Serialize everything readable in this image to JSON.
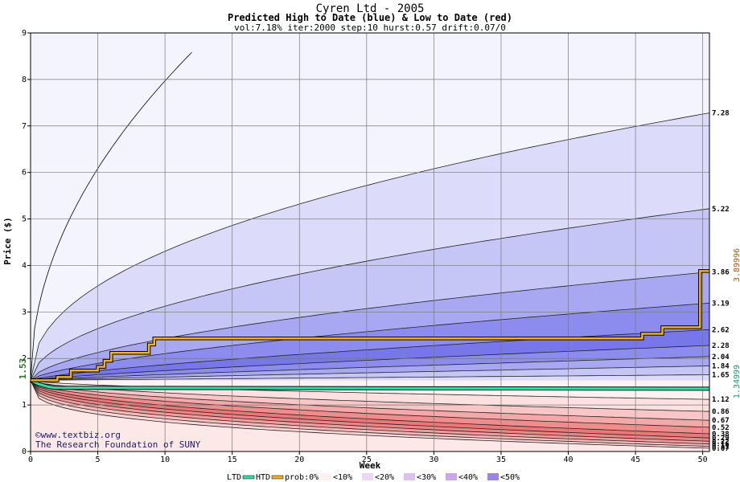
{
  "chart_data": {
    "type": "area",
    "title": "Cyren Ltd - 2005",
    "subtitle": "Predicted High to Date (blue) &  Low to Date (red)",
    "params": "vol:7.18% iter:2000 step:10 hurst:0.57 drift:0.07/0",
    "xlabel": "Week",
    "ylabel": "Price ($)",
    "xlim": [
      0,
      50.5
    ],
    "ylim": [
      0,
      9
    ],
    "x_ticks": [
      0,
      5,
      10,
      15,
      20,
      25,
      30,
      35,
      40,
      45,
      50
    ],
    "y_ticks": [
      0,
      1,
      2,
      3,
      4,
      5,
      6,
      7,
      8,
      9
    ],
    "grid": true,
    "start_price": 1.53,
    "start_price_label": "1.53",
    "htd_value": 3.89996,
    "htd_label": "3.89996",
    "ltd_value": 1.34999,
    "ltd_label": "1.34999",
    "high_bands": [
      {
        "end": 7.28,
        "label": "7.28",
        "color": "#dcdcfa"
      },
      {
        "end": 5.22,
        "label": "5.22",
        "color": "#c6c6f6"
      },
      {
        "end": 3.86,
        "label": "3.86",
        "color": "#a8a8f2"
      },
      {
        "end": 3.19,
        "label": "3.19",
        "color": "#8c8cee"
      },
      {
        "end": 2.62,
        "label": "2.62",
        "color": "#7777ea"
      },
      {
        "end": 2.28,
        "label": "2.28",
        "color": "#8c8cee"
      },
      {
        "end": 2.04,
        "label": "2.04",
        "color": "#a8a8f2"
      },
      {
        "end": 1.84,
        "label": "1.84",
        "color": "#c6c6f6"
      },
      {
        "end": 1.65,
        "label": "1.65",
        "color": "#dcdcfa"
      }
    ],
    "low_bands": [
      {
        "end": 1.12,
        "label": "1.12",
        "color": "#fde0e0"
      },
      {
        "end": 0.86,
        "label": "0.86",
        "color": "#f8c6c6"
      },
      {
        "end": 0.67,
        "label": "0.67",
        "color": "#f4a8a8"
      },
      {
        "end": 0.52,
        "label": "0.52",
        "color": "#f08c8c"
      },
      {
        "end": 0.38,
        "label": "0.38",
        "color": "#ec7777"
      },
      {
        "end": 0.29,
        "label": "0.29",
        "color": "#ee8484"
      },
      {
        "end": 0.22,
        "label": "0.22",
        "color": "#f29c9c"
      },
      {
        "end": 0.16,
        "label": "0.16",
        "color": "#f6baba"
      },
      {
        "end": 0.11,
        "label": "0.11",
        "color": "#fad6d6"
      },
      {
        "end": 0.07,
        "label": "0.07",
        "color": "#fde8e8"
      }
    ],
    "htd_series": {
      "name": "HTD",
      "x": [
        0,
        1,
        2,
        2,
        3,
        3,
        5,
        5,
        5.5,
        5.5,
        6,
        6,
        8.8,
        8.8,
        9.2,
        9.2,
        45.5,
        45.5,
        47,
        47,
        49.8,
        49.8,
        50.5
      ],
      "y": [
        1.53,
        1.53,
        1.53,
        1.6,
        1.6,
        1.74,
        1.74,
        1.82,
        1.82,
        1.95,
        1.95,
        2.12,
        2.12,
        2.3,
        2.3,
        2.43,
        2.43,
        2.53,
        2.53,
        2.67,
        2.67,
        3.88,
        3.88
      ]
    },
    "ltd_series": {
      "name": "LTD",
      "x": [
        0,
        0.6,
        1.2,
        1.8,
        50.5
      ],
      "y": [
        1.53,
        1.45,
        1.4,
        1.37,
        1.35
      ]
    },
    "legend": {
      "ltd": "LTD",
      "htd": "HTD",
      "prob": "prob:0%",
      "items": [
        "<10%",
        "<20%",
        "<30%",
        "<40%",
        "<50%"
      ],
      "colors": [
        "#fdf0f0",
        "#ecd6f4",
        "#dcc0f0",
        "#c8a8ea",
        "#9c84e8"
      ]
    },
    "credit_url": "©www.textbiz.org",
    "credit_org": "The Research Foundation of SUNY"
  }
}
